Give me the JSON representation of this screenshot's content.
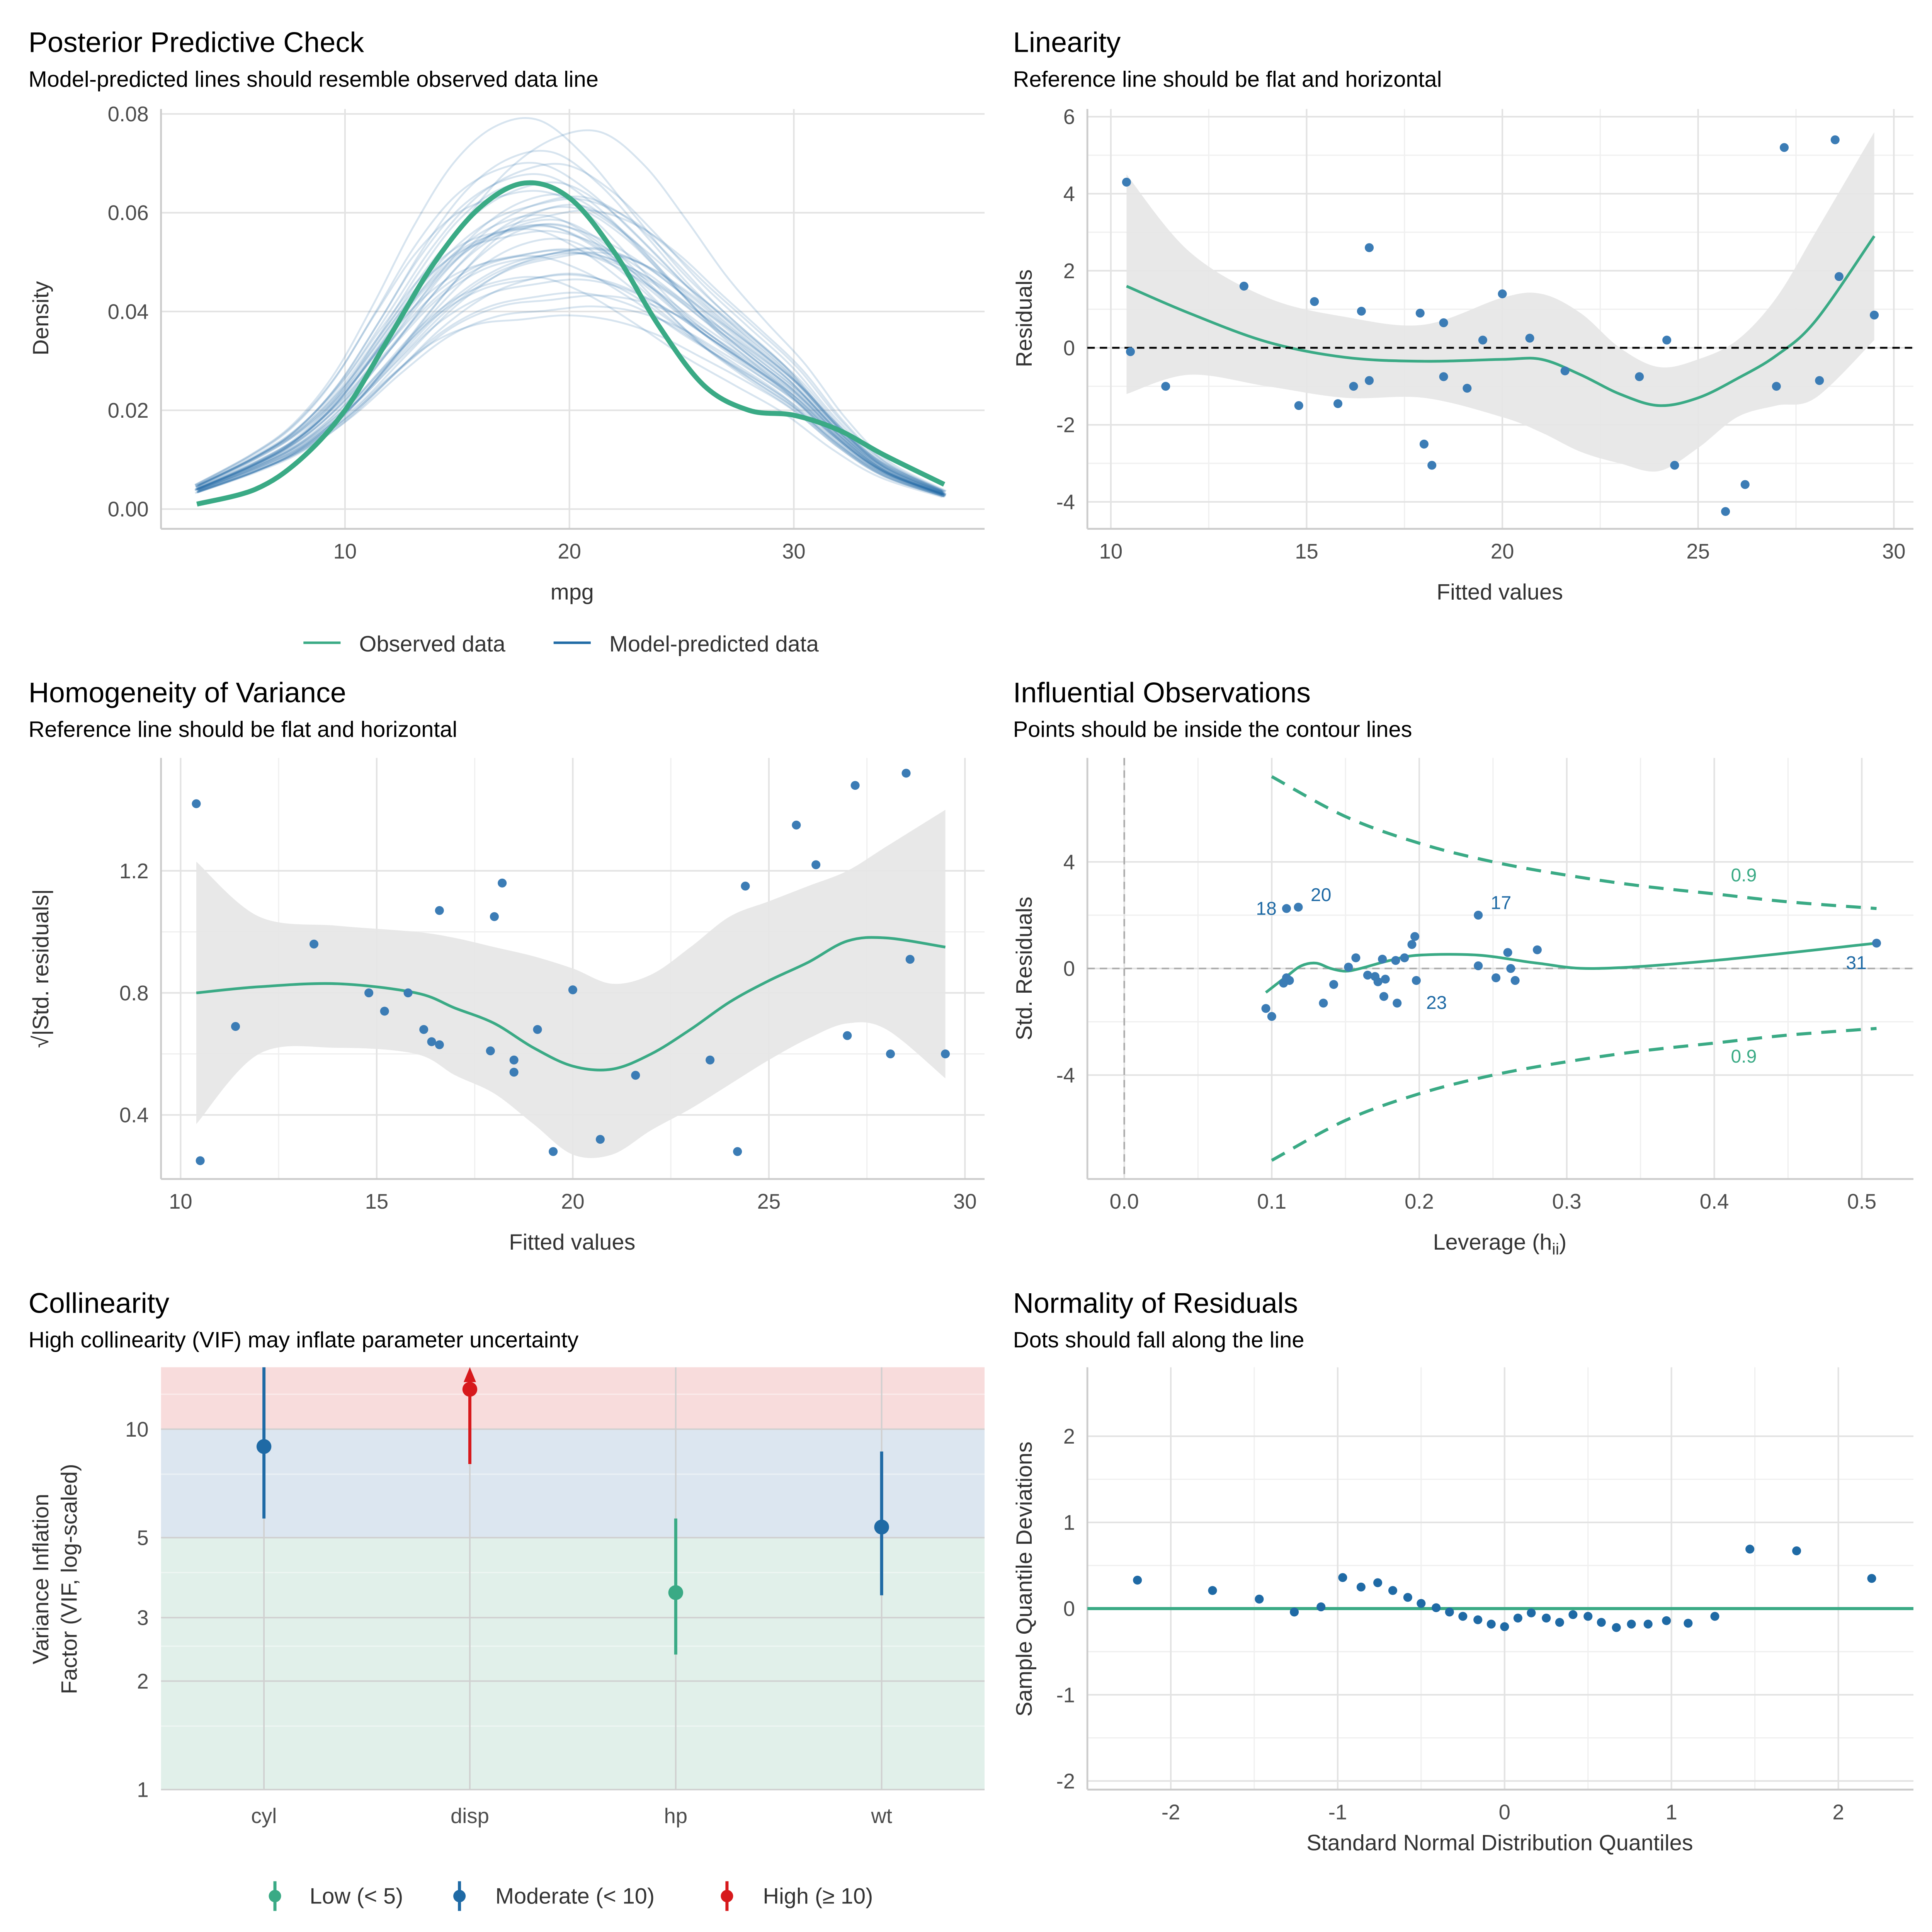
{
  "colors": {
    "observed": "#3aaa85",
    "predicted": "#1f6aa5",
    "point": "#3b7cb5",
    "high": "#d7191c",
    "band_low": "#e1f0ea",
    "band_moderate": "#dce6f0",
    "band_high": "#f8dcdc",
    "ci": "#e6e6e6"
  },
  "panels": {
    "ppc": {
      "title": "Posterior Predictive Check",
      "subtitle": "Model-predicted lines should resemble observed data line",
      "xlabel": "mpg",
      "ylabel": "Density",
      "legend": [
        "Observed data",
        "Model-predicted data"
      ]
    },
    "linearity": {
      "title": "Linearity",
      "subtitle": "Reference line should be flat and horizontal",
      "xlabel": "Fitted values",
      "ylabel": "Residuals"
    },
    "homogeneity": {
      "title": "Homogeneity of Variance",
      "subtitle": "Reference line should be flat and horizontal",
      "xlabel": "Fitted values",
      "ylabel": "√|Std. residuals|"
    },
    "influential": {
      "title": "Influential Observations",
      "subtitle": "Points should be inside the contour lines",
      "xlabel": "Leverage (h",
      "xlabel_sub": "ii",
      "xlabel_end": ")",
      "ylabel": "Std. Residuals"
    },
    "collinearity": {
      "title": "Collinearity",
      "subtitle": "High collinearity (VIF) may inflate parameter uncertainty",
      "ylabel1": "Variance Inflation",
      "ylabel2": "Factor (VIF, log-scaled)",
      "legend": [
        "Low (< 5)",
        "Moderate (< 10)",
        "High (≥ 10)"
      ]
    },
    "normality": {
      "title": "Normality of Residuals",
      "subtitle": "Dots should fall along the line",
      "xlabel": "Standard Normal Distribution Quantiles",
      "ylabel": "Sample Quantile Deviations"
    }
  },
  "chart_data": [
    {
      "id": "ppc",
      "type": "line",
      "xlim": [
        1.8,
        38.5
      ],
      "ylim": [
        -0.004,
        0.081
      ],
      "xticks": [
        10,
        20,
        30
      ],
      "yticks": [
        "0.00",
        "0.02",
        "0.04",
        "0.06",
        "0.08"
      ],
      "grid": true,
      "legend_placement": "bottom",
      "series": [
        {
          "name": "Observed data",
          "x": [
            3.4,
            6,
            8,
            10,
            12,
            14,
            16,
            18,
            20,
            22,
            24,
            26,
            28,
            30,
            32,
            34,
            36.7
          ],
          "y": [
            0.001,
            0.004,
            0.01,
            0.02,
            0.035,
            0.05,
            0.061,
            0.066,
            0.063,
            0.052,
            0.037,
            0.025,
            0.02,
            0.019,
            0.016,
            0.011,
            0.005
          ]
        },
        {
          "name": "Model-predicted data",
          "x": [
            3.4,
            6,
            8,
            10,
            12,
            14,
            16,
            18,
            20,
            22,
            24,
            26,
            28,
            30,
            32,
            34,
            36.7
          ],
          "y": [
            0.004,
            0.009,
            0.014,
            0.022,
            0.033,
            0.044,
            0.052,
            0.056,
            0.057,
            0.053,
            0.046,
            0.038,
            0.031,
            0.024,
            0.015,
            0.008,
            0.003
          ],
          "draws": 40
        }
      ]
    },
    {
      "id": "linearity",
      "type": "scatter",
      "xlim": [
        9.4,
        30.5
      ],
      "ylim": [
        -4.7,
        6.2
      ],
      "xticks": [
        10,
        15,
        20,
        25,
        30
      ],
      "yticks": [
        -4,
        -2,
        0,
        2,
        4,
        6
      ],
      "grid": true,
      "reference_line": 0,
      "points": [
        [
          10.4,
          4.3
        ],
        [
          10.5,
          -0.1
        ],
        [
          11.4,
          -1.0
        ],
        [
          13.4,
          1.6
        ],
        [
          14.8,
          -1.5
        ],
        [
          15.2,
          1.2
        ],
        [
          15.8,
          -1.45
        ],
        [
          16.2,
          -1.0
        ],
        [
          16.4,
          0.95
        ],
        [
          16.6,
          2.6
        ],
        [
          16.6,
          -0.85
        ],
        [
          17.9,
          0.9
        ],
        [
          18.0,
          -2.5
        ],
        [
          18.2,
          -3.05
        ],
        [
          18.5,
          -0.75
        ],
        [
          18.5,
          0.65
        ],
        [
          19.1,
          -1.05
        ],
        [
          19.5,
          0.2
        ],
        [
          20.0,
          1.4
        ],
        [
          20.7,
          0.25
        ],
        [
          21.6,
          -0.6
        ],
        [
          23.5,
          -0.75
        ],
        [
          24.2,
          0.2
        ],
        [
          24.4,
          -3.05
        ],
        [
          25.7,
          -4.25
        ],
        [
          26.2,
          -3.55
        ],
        [
          27.0,
          -1.0
        ],
        [
          27.2,
          5.2
        ],
        [
          28.1,
          -0.85
        ],
        [
          28.5,
          5.4
        ],
        [
          28.6,
          1.85
        ],
        [
          29.5,
          0.85
        ]
      ],
      "smooth": {
        "x": [
          10.4,
          12,
          14,
          16,
          18,
          20,
          21,
          22,
          23,
          24,
          25,
          26,
          27,
          28,
          29.5
        ],
        "y": [
          1.6,
          0.9,
          0.15,
          -0.25,
          -0.35,
          -0.3,
          -0.3,
          -0.7,
          -1.2,
          -1.5,
          -1.3,
          -0.8,
          -0.2,
          0.7,
          2.9
        ],
        "upper": [
          4.5,
          2.5,
          1.3,
          0.8,
          0.6,
          1.3,
          1.4,
          0.9,
          0,
          -0.5,
          -0.3,
          0.2,
          1.3,
          3,
          5.6
        ],
        "lower": [
          -1.2,
          -0.7,
          -1.0,
          -1.3,
          -1.3,
          -1.8,
          -2.2,
          -2.7,
          -3.0,
          -3.2,
          -2.6,
          -1.8,
          -1.5,
          -1.3,
          0.2
        ]
      }
    },
    {
      "id": "homogeneity",
      "type": "scatter",
      "xlim": [
        9.5,
        30.5
      ],
      "ylim": [
        0.19,
        1.57
      ],
      "xticks": [
        10,
        15,
        20,
        25,
        30
      ],
      "yticks": [
        0.4,
        0.8,
        1.2
      ],
      "grid": true,
      "points": [
        [
          10.4,
          1.42
        ],
        [
          10.5,
          0.25
        ],
        [
          11.4,
          0.69
        ],
        [
          13.4,
          0.96
        ],
        [
          14.8,
          0.8
        ],
        [
          15.2,
          0.74
        ],
        [
          15.8,
          0.8
        ],
        [
          16.2,
          0.68
        ],
        [
          16.4,
          0.64
        ],
        [
          16.6,
          1.07
        ],
        [
          16.6,
          0.63
        ],
        [
          17.9,
          0.61
        ],
        [
          18.0,
          1.05
        ],
        [
          18.2,
          1.16
        ],
        [
          18.5,
          0.58
        ],
        [
          18.5,
          0.54
        ],
        [
          19.1,
          0.68
        ],
        [
          19.5,
          0.28
        ],
        [
          20.0,
          0.81
        ],
        [
          20.7,
          0.32
        ],
        [
          21.6,
          0.53
        ],
        [
          23.5,
          0.58
        ],
        [
          24.2,
          0.28
        ],
        [
          24.4,
          1.15
        ],
        [
          25.7,
          1.35
        ],
        [
          26.2,
          1.22
        ],
        [
          27.0,
          0.66
        ],
        [
          27.2,
          1.48
        ],
        [
          28.1,
          0.6
        ],
        [
          28.5,
          1.52
        ],
        [
          28.6,
          0.91
        ],
        [
          29.5,
          0.6
        ]
      ],
      "smooth": {
        "x": [
          10.4,
          12,
          14,
          16,
          17,
          18,
          19,
          20,
          21,
          22,
          23,
          24,
          25,
          26,
          27,
          28,
          29.5
        ],
        "y": [
          0.8,
          0.82,
          0.83,
          0.8,
          0.75,
          0.7,
          0.62,
          0.56,
          0.55,
          0.6,
          0.68,
          0.77,
          0.84,
          0.9,
          0.97,
          0.98,
          0.95
        ],
        "upper": [
          1.23,
          1.05,
          1.02,
          1.0,
          0.98,
          0.95,
          0.92,
          0.88,
          0.83,
          0.86,
          0.95,
          1.05,
          1.1,
          1.15,
          1.2,
          1.28,
          1.4
        ],
        "lower": [
          0.37,
          0.6,
          0.62,
          0.6,
          0.53,
          0.47,
          0.37,
          0.27,
          0.27,
          0.35,
          0.42,
          0.5,
          0.58,
          0.65,
          0.7,
          0.68,
          0.52
        ]
      }
    },
    {
      "id": "influential",
      "type": "scatter",
      "xlim": [
        -0.025,
        0.535
      ],
      "ylim": [
        -7.9,
        7.9
      ],
      "xticks": [
        "0.0",
        "0.1",
        "0.2",
        "0.3",
        "0.4",
        "0.5"
      ],
      "yticks": [
        -4,
        0,
        4
      ],
      "grid": true,
      "points": [
        [
          0.096,
          -1.5
        ],
        [
          0.1,
          -1.8
        ],
        [
          0.108,
          -0.55
        ],
        [
          0.11,
          -0.35
        ],
        [
          0.112,
          -0.45
        ],
        [
          0.11,
          2.25
        ],
        [
          0.118,
          2.3
        ],
        [
          0.135,
          -1.3
        ],
        [
          0.142,
          -0.6
        ],
        [
          0.152,
          0.05
        ],
        [
          0.157,
          0.4
        ],
        [
          0.165,
          -0.25
        ],
        [
          0.17,
          -0.3
        ],
        [
          0.172,
          -0.5
        ],
        [
          0.175,
          0.35
        ],
        [
          0.176,
          -1.05
        ],
        [
          0.177,
          -0.4
        ],
        [
          0.184,
          0.3
        ],
        [
          0.185,
          -1.3
        ],
        [
          0.19,
          0.4
        ],
        [
          0.195,
          0.9
        ],
        [
          0.197,
          1.2
        ],
        [
          0.198,
          -0.45
        ],
        [
          0.24,
          0.1
        ],
        [
          0.24,
          2.0
        ],
        [
          0.252,
          -0.35
        ],
        [
          0.26,
          0.6
        ],
        [
          0.262,
          0
        ],
        [
          0.265,
          -0.45
        ],
        [
          0.28,
          0.7
        ],
        [
          0.51,
          0.95
        ]
      ],
      "labels": [
        {
          "text": "18",
          "x": 0.11,
          "y": 2.25,
          "pos": "left"
        },
        {
          "text": "20",
          "x": 0.118,
          "y": 2.3,
          "pos": "above-right"
        },
        {
          "text": "17",
          "x": 0.24,
          "y": 2.0,
          "pos": "above-right"
        },
        {
          "text": "23",
          "x": 0.198,
          "y": -0.45,
          "pos": "below-right"
        },
        {
          "text": "31",
          "x": 0.51,
          "y": 0.95,
          "pos": "below-left"
        }
      ],
      "contour": {
        "level": "0.9",
        "x": [
          0.1,
          0.15,
          0.2,
          0.25,
          0.3,
          0.35,
          0.4,
          0.45,
          0.51
        ],
        "y": [
          7.2,
          5.7,
          4.7,
          4.0,
          3.5,
          3.1,
          2.8,
          2.5,
          2.25
        ]
      },
      "smooth": {
        "x": [
          0.096,
          0.11,
          0.12,
          0.13,
          0.14,
          0.15,
          0.16,
          0.18,
          0.2,
          0.24,
          0.28,
          0.32,
          0.4,
          0.51
        ],
        "y": [
          -0.9,
          -0.3,
          0.1,
          0.2,
          0,
          -0.1,
          0,
          0.3,
          0.5,
          0.5,
          0.2,
          0,
          0.3,
          0.95
        ]
      }
    },
    {
      "id": "collinearity",
      "type": "scatter",
      "scale": "log",
      "categories": [
        "cyl",
        "disp",
        "hp",
        "wt"
      ],
      "ylim": [
        1,
        14.85
      ],
      "yticks": [
        1,
        2,
        3,
        5,
        10
      ],
      "grid": true,
      "legend_placement": "bottom",
      "values": [
        8.95,
        12.9,
        3.52,
        5.35
      ],
      "ci_low": [
        5.65,
        8.0,
        2.37,
        3.46
      ],
      "ci_high": [
        14.85,
        14.85,
        5.65,
        8.67
      ],
      "levels": [
        "moderate",
        "high",
        "low",
        "moderate"
      ],
      "bands": {
        "low": [
          1,
          5
        ],
        "moderate": [
          5,
          10
        ],
        "high": [
          10,
          14.85
        ]
      }
    },
    {
      "id": "normality",
      "type": "scatter",
      "xlim": [
        -2.5,
        2.45
      ],
      "ylim": [
        -2.1,
        2.8
      ],
      "xticks": [
        -2,
        -1,
        0,
        1,
        2
      ],
      "yticks": [
        -2,
        -1,
        0,
        1,
        2
      ],
      "grid": true,
      "reference_line": 0,
      "points": [
        [
          -2.2,
          0.33
        ],
        [
          -1.75,
          0.21
        ],
        [
          -1.47,
          0.11
        ],
        [
          -1.26,
          -0.04
        ],
        [
          -1.1,
          0.02
        ],
        [
          -0.97,
          0.36
        ],
        [
          -0.86,
          0.25
        ],
        [
          -0.76,
          0.3
        ],
        [
          -0.67,
          0.21
        ],
        [
          -0.58,
          0.13
        ],
        [
          -0.5,
          0.06
        ],
        [
          -0.41,
          0.01
        ],
        [
          -0.33,
          -0.04
        ],
        [
          -0.25,
          -0.09
        ],
        [
          -0.16,
          -0.13
        ],
        [
          -0.08,
          -0.18
        ],
        [
          0,
          -0.21
        ],
        [
          0.08,
          -0.11
        ],
        [
          0.16,
          -0.05
        ],
        [
          0.25,
          -0.11
        ],
        [
          0.33,
          -0.16
        ],
        [
          0.41,
          -0.07
        ],
        [
          0.5,
          -0.09
        ],
        [
          0.58,
          -0.16
        ],
        [
          0.67,
          -0.22
        ],
        [
          0.76,
          -0.18
        ],
        [
          0.86,
          -0.18
        ],
        [
          0.97,
          -0.14
        ],
        [
          1.1,
          -0.17
        ],
        [
          1.26,
          -0.09
        ],
        [
          1.47,
          0.69
        ],
        [
          1.75,
          0.67
        ],
        [
          2.2,
          0.35
        ]
      ]
    }
  ]
}
